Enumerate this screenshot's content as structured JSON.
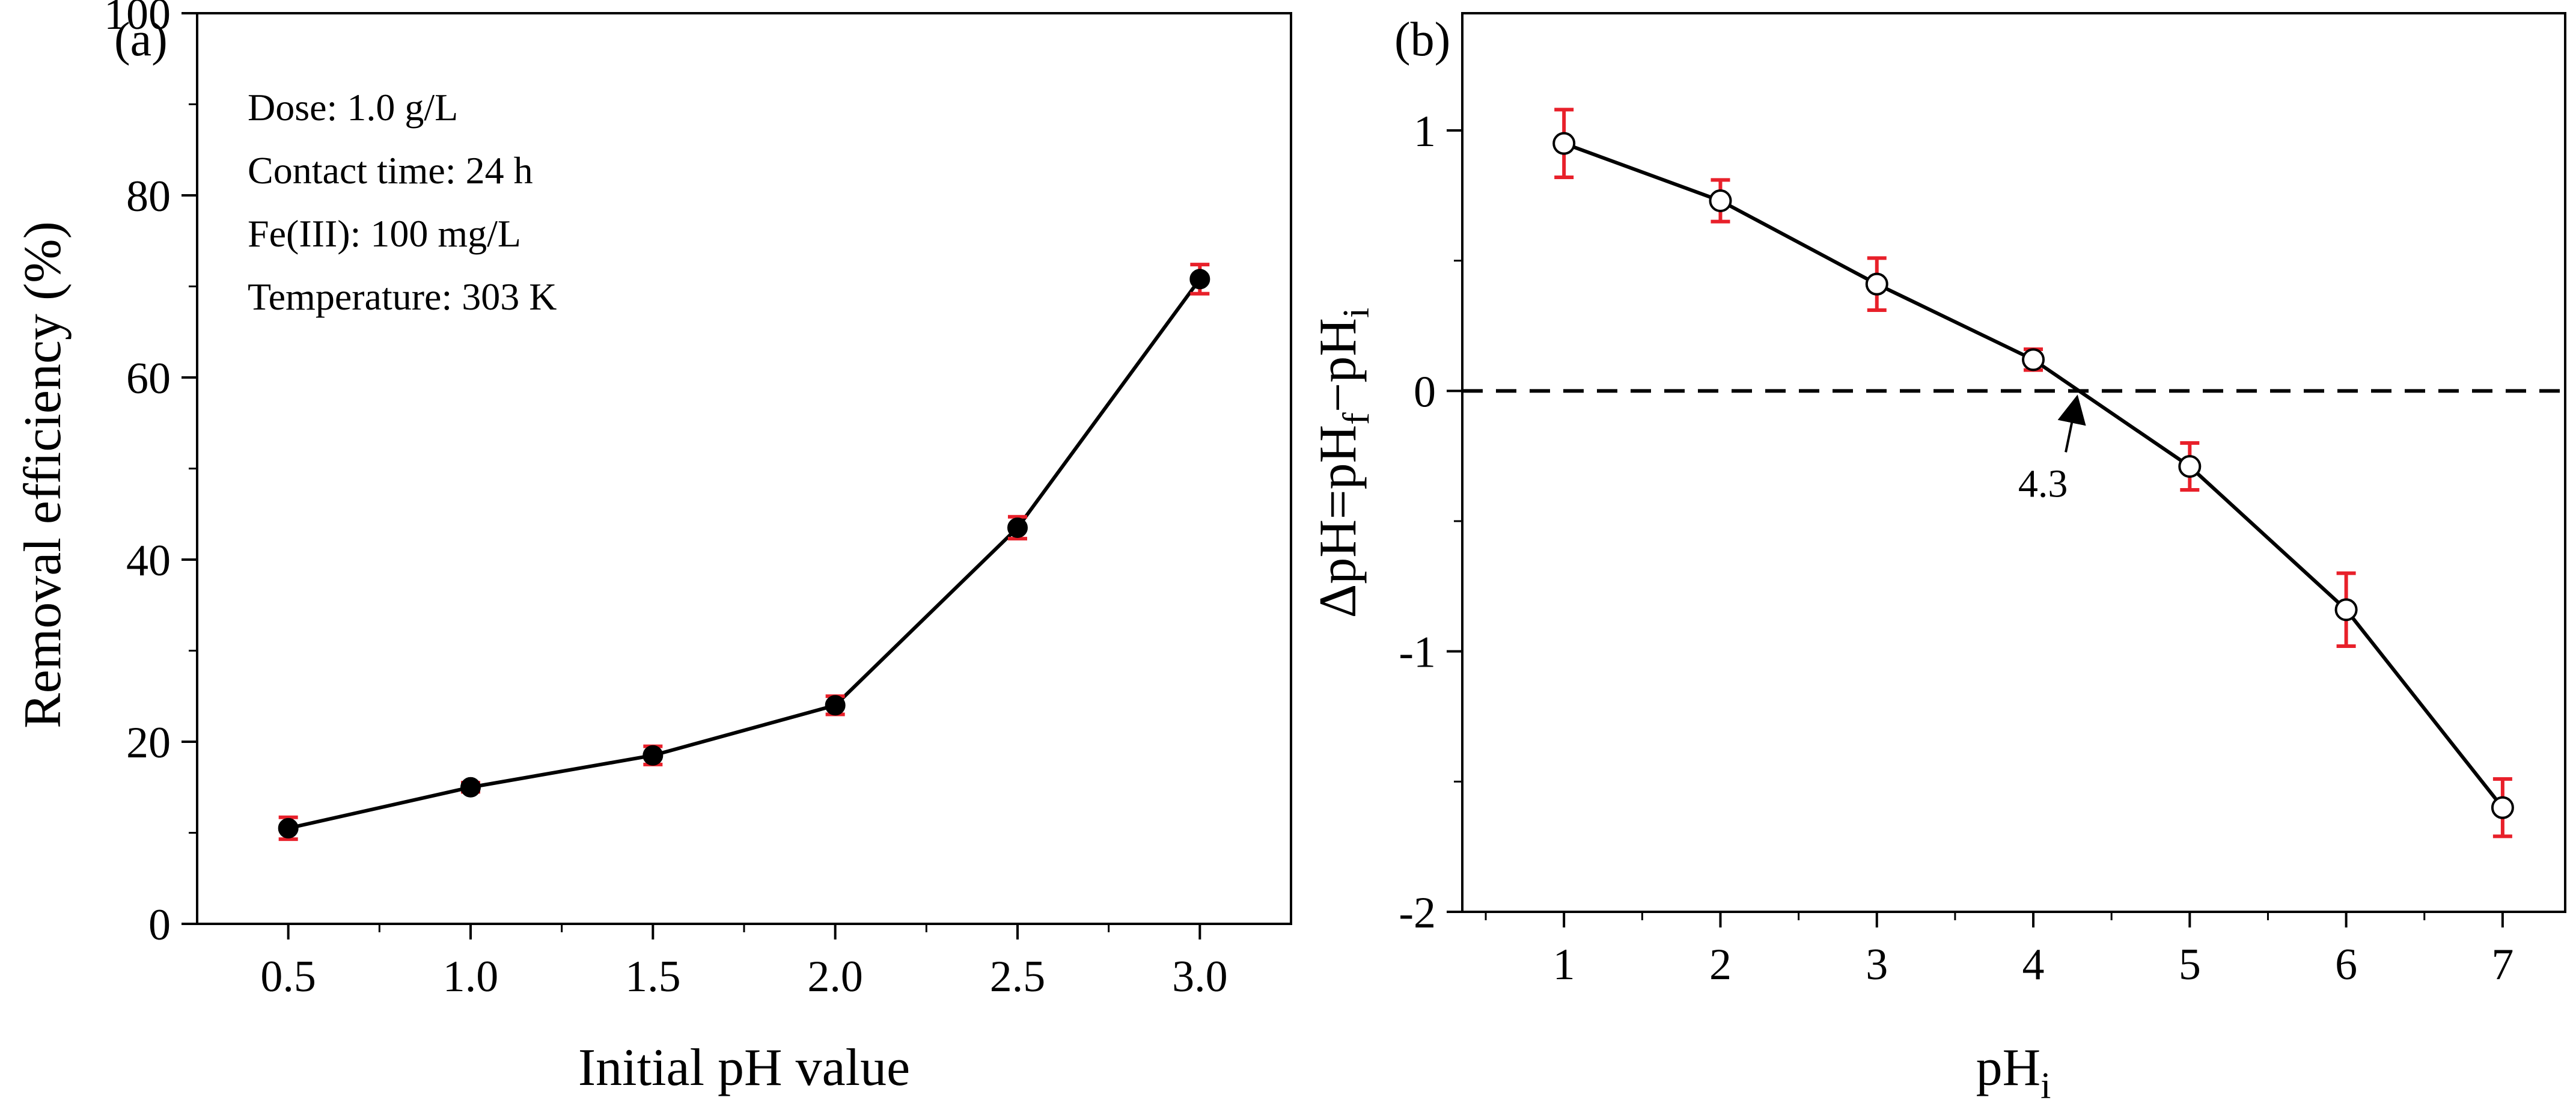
{
  "chart_data": [
    {
      "type": "line",
      "panel_label": "(a)",
      "xlabel": "Initial pH value",
      "ylabel": "Removal efficiency (%)",
      "xlim": [
        0.25,
        3.25
      ],
      "ylim": [
        0,
        100
      ],
      "xticks": [
        0.5,
        1.0,
        1.5,
        2.0,
        2.5,
        3.0
      ],
      "xtick_labels": [
        "0.5",
        "1.0",
        "1.5",
        "2.0",
        "2.5",
        "3.0"
      ],
      "yticks": [
        0,
        20,
        40,
        60,
        80,
        100
      ],
      "ytick_labels": [
        "0",
        "20",
        "40",
        "60",
        "80",
        "100"
      ],
      "series": [
        {
          "name": "Removal efficiency",
          "marker": "filled-circle",
          "marker_color": "#000000",
          "error_color": "#e8202a",
          "x": [
            0.5,
            1.0,
            1.5,
            2.0,
            2.5,
            3.0
          ],
          "values": [
            10.5,
            15.0,
            18.5,
            24.0,
            43.5,
            70.8
          ],
          "errors": [
            1.2,
            0.5,
            1.0,
            1.0,
            1.2,
            1.6
          ]
        }
      ],
      "annotations": [
        "Dose: 1.0 g/L",
        "Contact time: 24 h",
        "Fe(III): 100 mg/L",
        "Temperature: 303 K"
      ]
    },
    {
      "type": "line",
      "panel_label": "(b)",
      "xlabel_main": "pH",
      "xlabel_sub": "i",
      "ylabel_parts": {
        "delta": "ΔpH=pH",
        "sub_f": "f",
        "minus": "−pH",
        "sub_i": "i"
      },
      "xlim": [
        0.35,
        7.4
      ],
      "ylim": [
        -2,
        1.45
      ],
      "xticks": [
        1,
        2,
        3,
        4,
        5,
        6,
        7
      ],
      "xtick_labels": [
        "1",
        "2",
        "3",
        "4",
        "5",
        "6",
        "7"
      ],
      "yticks": [
        -2,
        -1,
        0,
        1
      ],
      "ytick_labels": [
        "-2",
        "-1",
        "0",
        "1"
      ],
      "reference_line": {
        "y": 0,
        "style": "dashed"
      },
      "series": [
        {
          "name": "ΔpH",
          "marker": "open-circle",
          "marker_color": "#000000",
          "error_color": "#e8202a",
          "x": [
            1,
            2,
            3,
            4,
            5,
            6,
            7
          ],
          "values": [
            0.95,
            0.73,
            0.41,
            0.12,
            -0.29,
            -0.84,
            -1.6
          ],
          "errors": [
            0.13,
            0.08,
            0.1,
            0.04,
            0.09,
            0.14,
            0.11
          ]
        }
      ],
      "arrow_annotation": {
        "text": "4.3",
        "target_x": 4.3,
        "target_y": 0,
        "text_x": 4.1,
        "text_y": -0.36
      }
    }
  ]
}
